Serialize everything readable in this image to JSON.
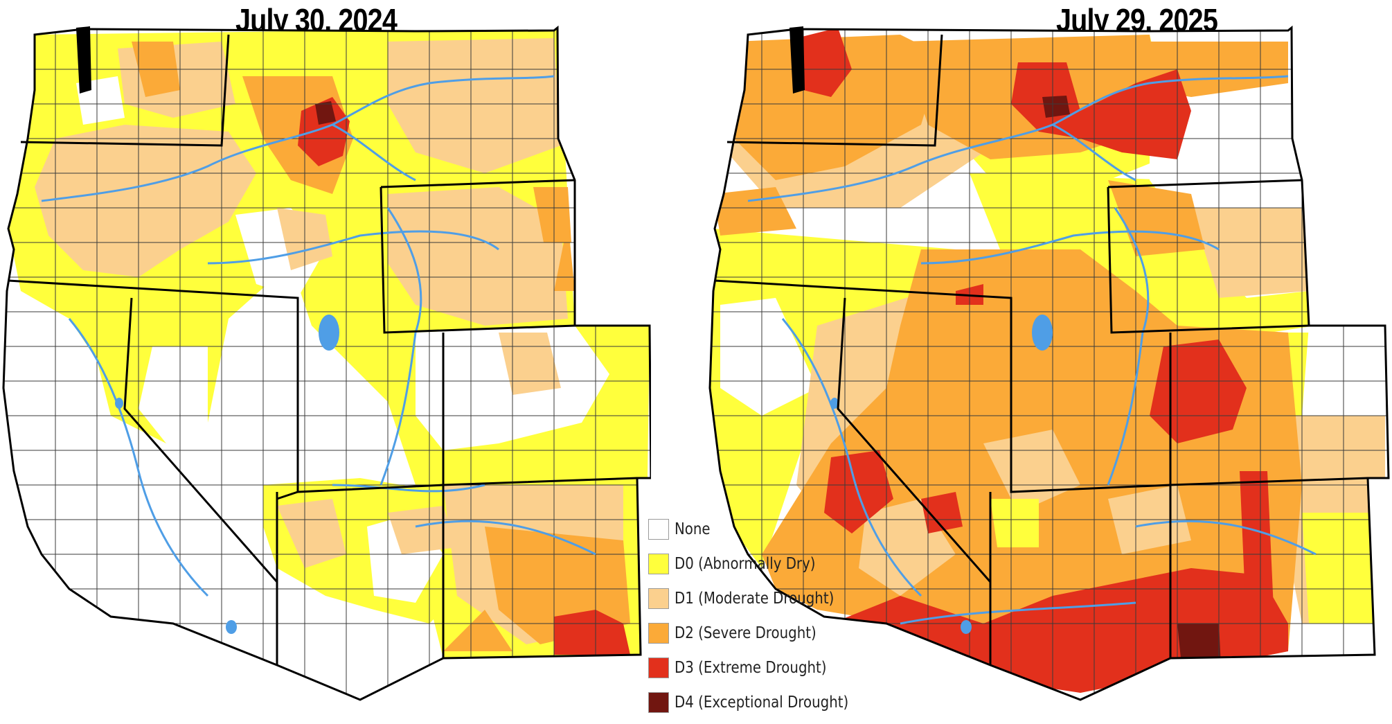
{
  "maps": [
    {
      "title": "July 30, 2024"
    },
    {
      "title": "July 29, 2025"
    }
  ],
  "legend": [
    {
      "label": "None",
      "color": "#ffffff"
    },
    {
      "label": "D0 (Abnormally Dry)",
      "color": "#ffff3c"
    },
    {
      "label": "D1 (Moderate Drought)",
      "color": "#fbd08e"
    },
    {
      "label": "D2 (Severe Drought)",
      "color": "#fbaa38"
    },
    {
      "label": "D3 (Extreme Drought)",
      "color": "#e2301c"
    },
    {
      "label": "D4 (Exceptional Drought)",
      "color": "#711610"
    }
  ],
  "colors": {
    "rivers": "#4f9ee6",
    "borders": "#000000",
    "county_lines": "#3a3a3a"
  }
}
